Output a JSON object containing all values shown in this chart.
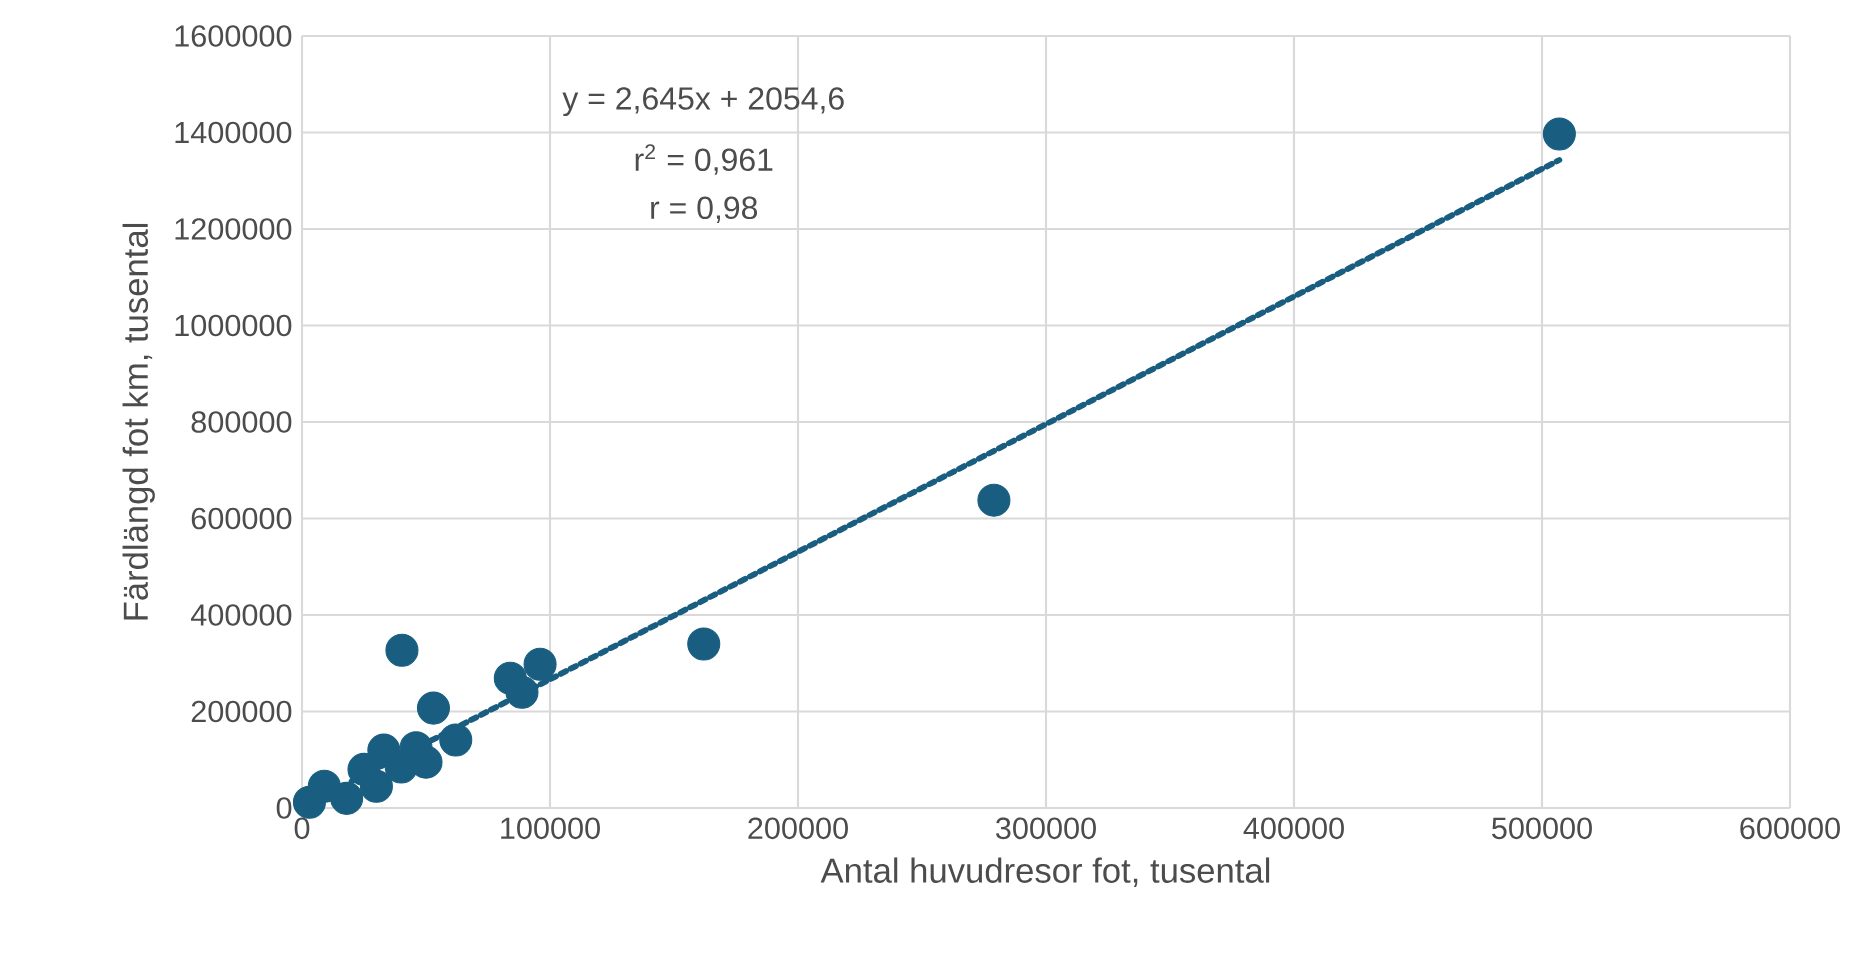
{
  "chart_data": {
    "type": "scatter",
    "xlabel": "Antal huvudresor fot, tusental",
    "ylabel": "Färdlängd fot km, tusental",
    "xlim": [
      0,
      600000
    ],
    "xticks": [
      0,
      100000,
      200000,
      300000,
      400000,
      500000,
      600000
    ],
    "ylim": [
      0,
      1600000
    ],
    "yticks": [
      0,
      200000,
      400000,
      600000,
      800000,
      1000000,
      1200000,
      1400000,
      1600000
    ],
    "grid": true,
    "marker": "circle",
    "annotations": [
      "y = 2,645x + 2054,6",
      "r$^{2}$ = 0,961",
      "r = 0,98"
    ],
    "series": [
      {
        "color": "#195e80",
        "x": [
          3000,
          9000,
          18000,
          25000,
          30000,
          33000,
          40000,
          46000,
          50000,
          62000,
          53000,
          40300,
          84000,
          88700,
          96000,
          162000,
          279000,
          507000
        ],
        "values": [
          12000,
          45000,
          20000,
          80000,
          45000,
          120000,
          85000,
          125000,
          95000,
          141000,
          207000,
          327000,
          269000,
          240000,
          298000,
          340000,
          638000,
          1397000
        ]
      },
      {
        "type": "line",
        "color": "#195e80",
        "line_style": "dotted",
        "marker": "none",
        "x": [
          20000,
          507000
        ],
        "values": [
          55000,
          1343000
        ]
      }
    ]
  }
}
